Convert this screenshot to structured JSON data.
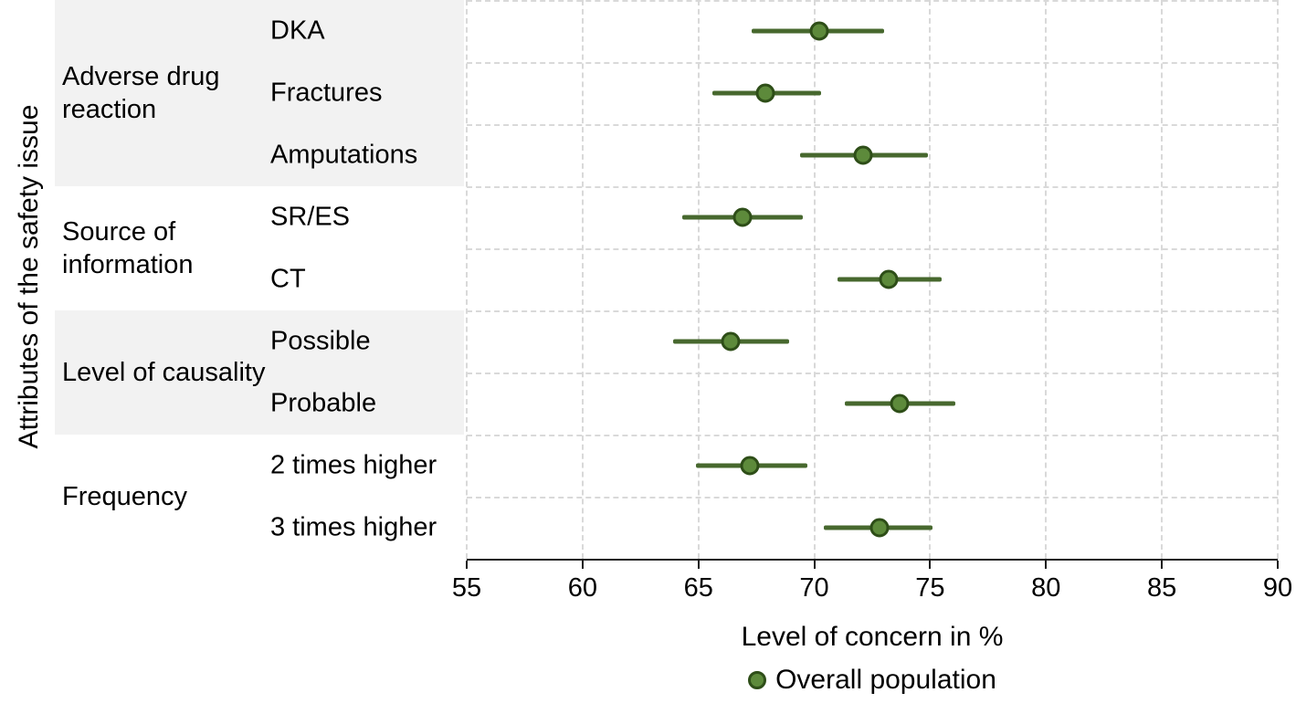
{
  "chart_data": {
    "type": "scatter",
    "title": "",
    "xlabel": "Level of concern in %",
    "ylabel": "Attributes of the safety issue",
    "xlim": [
      55,
      90
    ],
    "x_ticks": [
      55,
      60,
      65,
      70,
      75,
      80,
      85,
      90
    ],
    "grid": "dashed",
    "legend": [
      {
        "name": "Overall population",
        "marker": "circle"
      }
    ],
    "colors": {
      "marker_fill": "#5d8a3b",
      "marker_stroke": "#2e4e18",
      "interval_line": "#47682e",
      "band": "#f2f2f2",
      "grid": "#d9d9d9",
      "axis": "#1a1a1a",
      "text": "#000000"
    },
    "groups": [
      {
        "label": "Adverse drug reaction",
        "shaded": true,
        "items": [
          {
            "label": "DKA",
            "value": 70.2,
            "ci_low": 67.3,
            "ci_high": 73.0
          },
          {
            "label": "Fractures",
            "value": 67.9,
            "ci_low": 65.6,
            "ci_high": 70.3
          },
          {
            "label": "Amputations",
            "value": 72.1,
            "ci_low": 69.4,
            "ci_high": 74.9
          }
        ]
      },
      {
        "label": "Source of information",
        "shaded": false,
        "items": [
          {
            "label": "SR/ES",
            "value": 66.9,
            "ci_low": 64.3,
            "ci_high": 69.5
          },
          {
            "label": "CT",
            "value": 73.2,
            "ci_low": 71.0,
            "ci_high": 75.5
          }
        ]
      },
      {
        "label": "Level of causality",
        "shaded": true,
        "items": [
          {
            "label": "Possible",
            "value": 66.4,
            "ci_low": 63.9,
            "ci_high": 68.9
          },
          {
            "label": "Probable",
            "value": 73.7,
            "ci_low": 71.3,
            "ci_high": 76.1
          }
        ]
      },
      {
        "label": "Frequency",
        "shaded": false,
        "items": [
          {
            "label": "2 times higher",
            "value": 67.2,
            "ci_low": 64.9,
            "ci_high": 69.7
          },
          {
            "label": "3 times higher",
            "value": 72.8,
            "ci_low": 70.4,
            "ci_high": 75.1
          }
        ]
      }
    ]
  }
}
